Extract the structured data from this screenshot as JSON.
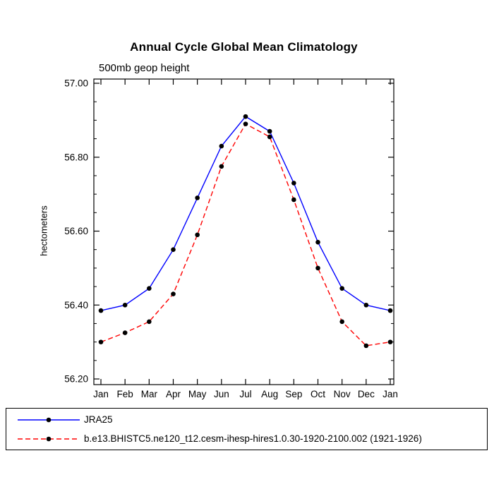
{
  "title": "Annual Cycle Global Mean Climatology",
  "subtitle": "500mb geop height",
  "ylabel": "hectometers",
  "chart_data": {
    "type": "line",
    "categories": [
      "Jan",
      "Feb",
      "Mar",
      "Apr",
      "May",
      "Jun",
      "Jul",
      "Aug",
      "Sep",
      "Oct",
      "Nov",
      "Dec",
      "Jan"
    ],
    "series": [
      {
        "name": "JRA25",
        "color": "#0000ff",
        "dash": "solid",
        "marker_color": "#000000",
        "values": [
          56.385,
          56.4,
          56.445,
          56.55,
          56.69,
          56.83,
          56.91,
          56.87,
          56.73,
          56.57,
          56.445,
          56.4,
          56.385
        ]
      },
      {
        "name": "b.e13.BHISTC5.ne120_t12.cesm-ihesp-hires1.0.30-1920-2100.002 (1921-1926)",
        "color": "#ff0000",
        "dash": "dashed",
        "marker_color": "#000000",
        "values": [
          56.3,
          56.325,
          56.355,
          56.43,
          56.59,
          56.775,
          56.89,
          56.855,
          56.685,
          56.5,
          56.355,
          56.29,
          56.3
        ]
      }
    ],
    "ylim": [
      56.2,
      57.0
    ],
    "yticks": [
      56.2,
      56.4,
      56.6,
      56.8,
      57.0
    ],
    "ytick_minor_step": 0.05,
    "grid": false,
    "legend_position": "bottom"
  }
}
